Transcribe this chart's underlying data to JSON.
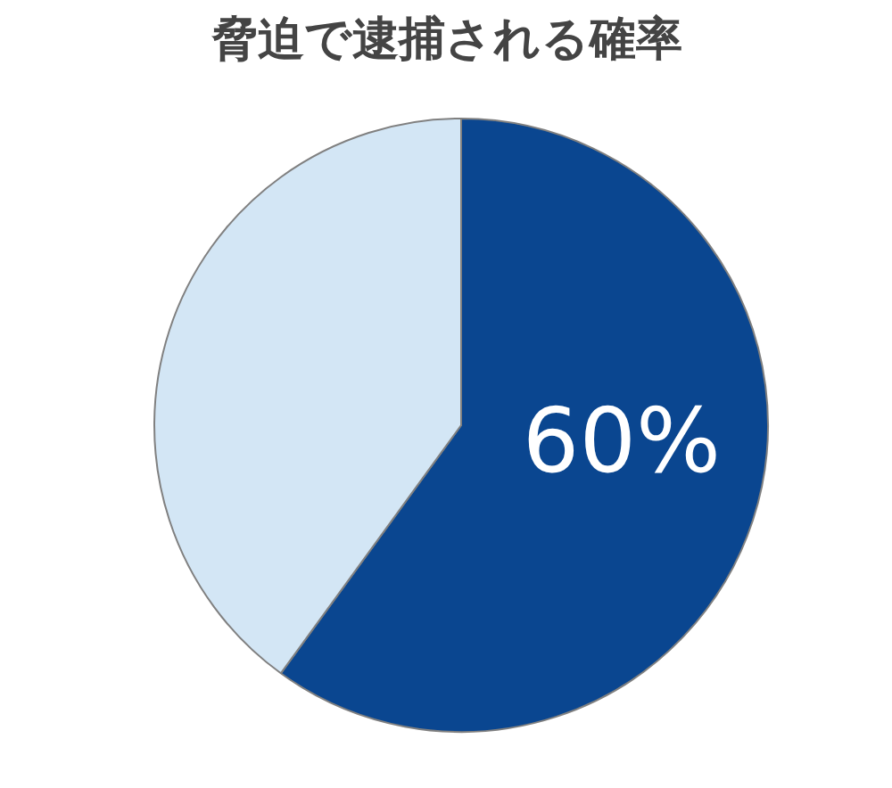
{
  "chart_data": {
    "type": "pie",
    "title": "脅迫で逮捕される確率",
    "categories": [
      null,
      null
    ],
    "values": [
      60,
      40
    ],
    "colors": [
      "#0a4690",
      "#d3e6f5"
    ],
    "value_labels": [
      "60%",
      null
    ]
  }
}
